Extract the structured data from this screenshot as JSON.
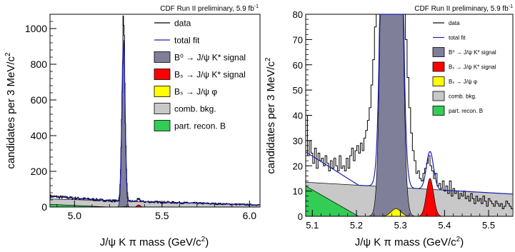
{
  "colors": {
    "data": "#000000",
    "total_fit": "#1f1fb4",
    "b0_signal": "#7f7f9a",
    "bs_jpsi_kstar": "#ff0000",
    "bs_jpsi_phi": "#ffff00",
    "comb_bkg": "#c8c8c8",
    "part_recon": "#33cc55"
  },
  "chart_data": [
    {
      "type": "line",
      "subtitle_text": "CDF Run II preliminary, 5.9 fb",
      "subtitle_sup": "-1",
      "xlabel_main": "J/ψ K π mass (GeV/c",
      "xlabel_sup": "2",
      "xlabel_tail": ")",
      "ylabel_main": "candidates per 3 MeV/c",
      "ylabel_sup": "2",
      "xlim": [
        4.86,
        6.06
      ],
      "ylim": [
        0,
        1080
      ],
      "xticks": [
        5.0,
        5.5,
        6.0
      ],
      "xtick_labels": [
        "5.0",
        "5.5",
        "6.0"
      ],
      "yticks": [
        0,
        200,
        400,
        600,
        800,
        1000
      ],
      "ytick_labels": [
        "0",
        "200",
        "400",
        "600",
        "800",
        "1000"
      ],
      "legend_position": "top-right",
      "legend": [
        {
          "key": "data",
          "kind": "line",
          "label": "data"
        },
        {
          "key": "total_fit",
          "kind": "line",
          "label": "total fit"
        },
        {
          "key": "b0_signal",
          "kind": "box",
          "label": "B⁰ → J/ψ K* signal"
        },
        {
          "key": "bs_jpsi_kstar",
          "kind": "box",
          "label": "Bₛ → J/ψ K* signal"
        },
        {
          "key": "bs_jpsi_phi",
          "kind": "box",
          "label": "Bₛ → J/ψ φ"
        },
        {
          "key": "comb_bkg",
          "kind": "box",
          "label": "comb. bkg."
        },
        {
          "key": "part_recon",
          "kind": "box",
          "label": "part. recon. B"
        }
      ],
      "model": {
        "b0": {
          "mean": 5.28,
          "sigma": 0.009,
          "peak": 900
        },
        "bs_kstar": {
          "mean": 5.367,
          "sigma": 0.009,
          "peak": 12
        },
        "bs_phi": {
          "mean": 5.29,
          "sigma": 0.015,
          "peak": 2
        },
        "comb": {
          "start": 45,
          "slope": -28
        },
        "part_recon": {
          "start": 15,
          "end": 5.2
        }
      }
    },
    {
      "type": "line",
      "subtitle_text": "CDF Run II preliminary, 5.9 fb",
      "subtitle_sup": "-1",
      "xlabel_main": "J/ψ K π mass (GeV/c",
      "xlabel_sup": "2",
      "xlabel_tail": ")",
      "ylabel_main": "candidates per 3 MeV/c",
      "ylabel_sup": "2",
      "xlim": [
        5.085,
        5.555
      ],
      "ylim": [
        0,
        80
      ],
      "xticks": [
        5.1,
        5.2,
        5.3,
        5.4,
        5.5
      ],
      "xtick_labels": [
        "5.1",
        "5.2",
        "5.3",
        "5.4",
        "5.5"
      ],
      "yticks": [
        0,
        10,
        20,
        30,
        40,
        50,
        60,
        70,
        80
      ],
      "ytick_labels": [
        "0",
        "10",
        "20",
        "30",
        "40",
        "50",
        "60",
        "70",
        "80"
      ],
      "legend_position": "top-right",
      "legend": [
        {
          "key": "data",
          "kind": "line",
          "label": "data"
        },
        {
          "key": "total_fit",
          "kind": "line",
          "label": "total fit"
        },
        {
          "key": "b0_signal",
          "kind": "box",
          "label": "B⁰ → J/ψ K* signal"
        },
        {
          "key": "bs_jpsi_kstar",
          "kind": "box",
          "label": "Bₛ → J/ψ K* signal"
        },
        {
          "key": "bs_jpsi_phi",
          "kind": "box",
          "label": "Bₛ → J/ψ φ"
        },
        {
          "key": "comb_bkg",
          "kind": "box",
          "label": "comb. bkg."
        },
        {
          "key": "part_recon",
          "kind": "box",
          "label": "part. recon. B"
        }
      ],
      "model": {
        "b0": {
          "mean": 5.28,
          "sigma": 0.012,
          "peak": 900
        },
        "bs_kstar": {
          "mean": 5.367,
          "sigma": 0.008,
          "peak": 15
        },
        "bs_phi": {
          "mean": 5.29,
          "sigma": 0.011,
          "peak": 3
        },
        "comb": {
          "start": 13.5,
          "slope": -10
        },
        "part_recon": {
          "start": 12,
          "end": 5.205
        }
      },
      "data_points": [
        [
          5.087,
          40
        ],
        [
          5.091,
          24
        ],
        [
          5.095,
          30
        ],
        [
          5.099,
          25
        ],
        [
          5.103,
          21
        ],
        [
          5.107,
          27
        ],
        [
          5.111,
          19
        ],
        [
          5.115,
          25
        ],
        [
          5.119,
          22
        ],
        [
          5.123,
          23
        ],
        [
          5.127,
          20
        ],
        [
          5.131,
          24
        ],
        [
          5.135,
          21
        ],
        [
          5.139,
          18
        ],
        [
          5.143,
          22
        ],
        [
          5.147,
          19
        ],
        [
          5.151,
          23
        ],
        [
          5.155,
          20
        ],
        [
          5.159,
          18
        ],
        [
          5.163,
          24
        ],
        [
          5.167,
          19
        ],
        [
          5.171,
          20
        ],
        [
          5.175,
          18
        ],
        [
          5.179,
          23
        ],
        [
          5.183,
          19
        ],
        [
          5.187,
          24
        ],
        [
          5.191,
          27
        ],
        [
          5.195,
          22
        ],
        [
          5.199,
          26
        ],
        [
          5.203,
          28
        ],
        [
          5.207,
          25
        ],
        [
          5.211,
          29
        ],
        [
          5.215,
          26
        ],
        [
          5.219,
          31
        ],
        [
          5.223,
          34
        ],
        [
          5.227,
          38
        ],
        [
          5.231,
          43
        ],
        [
          5.235,
          52
        ],
        [
          5.239,
          62
        ],
        [
          5.243,
          75
        ],
        [
          5.247,
          80
        ],
        [
          5.309,
          80
        ],
        [
          5.313,
          70
        ],
        [
          5.317,
          55
        ],
        [
          5.321,
          43
        ],
        [
          5.325,
          33
        ],
        [
          5.329,
          26
        ],
        [
          5.333,
          22
        ],
        [
          5.337,
          17
        ],
        [
          5.341,
          18
        ],
        [
          5.345,
          15
        ],
        [
          5.349,
          14
        ],
        [
          5.353,
          17
        ],
        [
          5.357,
          19
        ],
        [
          5.361,
          21
        ],
        [
          5.365,
          24
        ],
        [
          5.369,
          20
        ],
        [
          5.373,
          18
        ],
        [
          5.377,
          15
        ],
        [
          5.381,
          17
        ],
        [
          5.385,
          12
        ],
        [
          5.389,
          13
        ],
        [
          5.393,
          11
        ],
        [
          5.397,
          14
        ],
        [
          5.401,
          10
        ],
        [
          5.405,
          12
        ],
        [
          5.409,
          9
        ],
        [
          5.413,
          14
        ],
        [
          5.417,
          8
        ],
        [
          5.421,
          11
        ],
        [
          5.425,
          9
        ],
        [
          5.429,
          10
        ],
        [
          5.433,
          7
        ],
        [
          5.437,
          9
        ],
        [
          5.441,
          8
        ],
        [
          5.445,
          10
        ],
        [
          5.449,
          7
        ],
        [
          5.453,
          8
        ],
        [
          5.457,
          6
        ],
        [
          5.461,
          9
        ],
        [
          5.465,
          7
        ],
        [
          5.469,
          5
        ],
        [
          5.473,
          8
        ],
        [
          5.477,
          6
        ],
        [
          5.481,
          7
        ],
        [
          5.485,
          5
        ],
        [
          5.489,
          8
        ],
        [
          5.493,
          6
        ],
        [
          5.497,
          4
        ],
        [
          5.501,
          7
        ],
        [
          5.505,
          6
        ],
        [
          5.509,
          5
        ],
        [
          5.513,
          4
        ],
        [
          5.517,
          6
        ],
        [
          5.521,
          5
        ],
        [
          5.525,
          4
        ],
        [
          5.529,
          5
        ],
        [
          5.533,
          3
        ],
        [
          5.537,
          4
        ],
        [
          5.541,
          6
        ],
        [
          5.545,
          5
        ],
        [
          5.549,
          4
        ],
        [
          5.553,
          3
        ]
      ]
    }
  ]
}
